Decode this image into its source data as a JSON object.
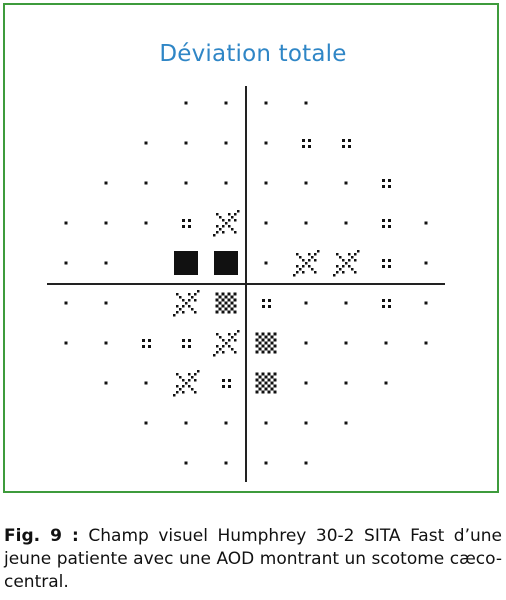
{
  "figure": {
    "title": "Déviation totale",
    "title_color": "#2f86c6",
    "frame_color": "#3e9b3c",
    "symbol_legend": {
      "0": "small dot",
      "1": "4-dot pattern",
      "2": "diagonal hatched pattern",
      "3": "dense checker pattern",
      "4": "solid black square"
    },
    "rows": [
      [
        null,
        null,
        null,
        0,
        0,
        0,
        0,
        null,
        null,
        null
      ],
      [
        null,
        null,
        0,
        0,
        0,
        0,
        1,
        1,
        null,
        null
      ],
      [
        null,
        0,
        0,
        0,
        0,
        0,
        0,
        0,
        1,
        null
      ],
      [
        0,
        0,
        0,
        1,
        2,
        0,
        0,
        0,
        1,
        0
      ],
      [
        0,
        0,
        null,
        4,
        4,
        0,
        2,
        2,
        1,
        0
      ],
      [
        0,
        0,
        null,
        2,
        3,
        1,
        0,
        0,
        1,
        0
      ],
      [
        0,
        0,
        1,
        1,
        2,
        3,
        0,
        0,
        0,
        0
      ],
      [
        null,
        0,
        0,
        2,
        1,
        3,
        0,
        0,
        0,
        null
      ],
      [
        null,
        null,
        0,
        0,
        0,
        0,
        0,
        0,
        null,
        null
      ],
      [
        null,
        null,
        null,
        0,
        0,
        0,
        0,
        null,
        null,
        null
      ]
    ]
  },
  "caption": {
    "label": "Fig. 9 :",
    "text": " Champ visuel Humphrey 30-2 SITA Fast d’une jeune patiente avec une AOD montrant un scotome cæco-central."
  }
}
